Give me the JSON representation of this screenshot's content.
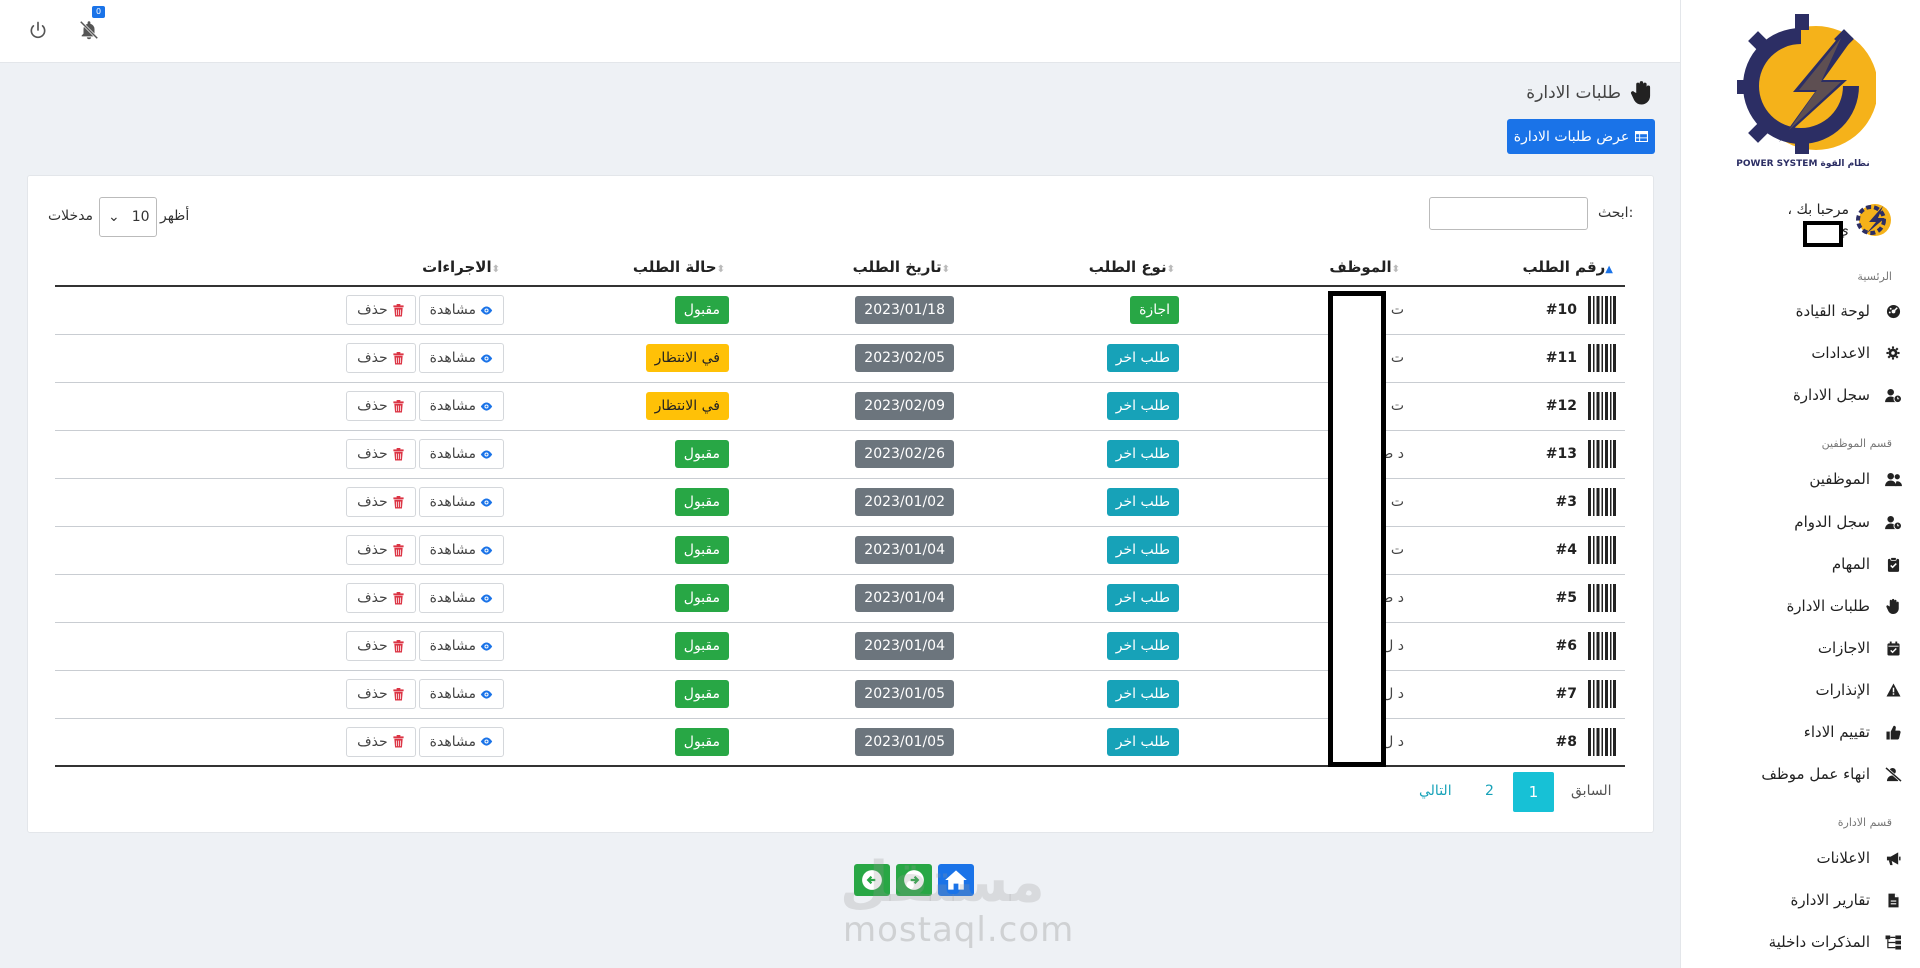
{
  "topbar": {
    "notification_count": "0"
  },
  "sidebar": {
    "logo_text": "نظام القوة POWER SYSTEM",
    "greeting": "مرحبا بك ،",
    "user_name": "ي",
    "sections": {
      "main": "الرئسية",
      "employees": "قسم الموظفين",
      "admin": "قسم الادارة"
    },
    "items": [
      {
        "label": "لوحة القيادة",
        "icon": "dashboard-icon"
      },
      {
        "label": "الاعدادات",
        "icon": "gear-icon"
      },
      {
        "label": "سجل الادارة",
        "icon": "user-clock-icon"
      },
      {
        "label": "الموظفين",
        "icon": "users-icon"
      },
      {
        "label": "سجل الدوام",
        "icon": "user-clock-icon"
      },
      {
        "label": "المهام",
        "icon": "clipboard-icon"
      },
      {
        "label": "طلبات الادارة",
        "icon": "hand-icon"
      },
      {
        "label": "الاجازات",
        "icon": "calendar-check-icon"
      },
      {
        "label": "الإنذارات",
        "icon": "warning-icon"
      },
      {
        "label": "تقييم الاداء",
        "icon": "thumbs-up-icon"
      },
      {
        "label": "انهاء عمل موظف",
        "icon": "user-slash-icon"
      },
      {
        "label": "الاعلانات",
        "icon": "megaphone-icon"
      },
      {
        "label": "تقارير الادارة",
        "icon": "file-icon"
      },
      {
        "label": "المذكرات داخلية",
        "icon": "sitemap-icon"
      }
    ]
  },
  "page": {
    "title": "طلبات الادارة",
    "view_button": "عرض طلبات الادارة"
  },
  "table_controls": {
    "search_label": "ابحث:",
    "show_label": "أظهر",
    "page_length": "10",
    "entries_label": "مدخلات"
  },
  "table": {
    "headers": [
      "رقم الطلب",
      "الموظف",
      "نوع الطلب",
      "تاريخ الطلب",
      "حالة الطلب",
      "الاجراءات"
    ],
    "view_label": "مشاهدة",
    "delete_label": "حذف",
    "rows": [
      {
        "no": "#10",
        "emp": "ت",
        "type": "اجازة",
        "type_color": "green",
        "date": "2023/01/18",
        "status": "مقبول",
        "status_color": "green"
      },
      {
        "no": "#11",
        "emp": "ت",
        "type": "طلب اخر",
        "type_color": "teal",
        "date": "2023/02/05",
        "status": "في الانتظار",
        "status_color": "yellow"
      },
      {
        "no": "#12",
        "emp": "ت",
        "type": "طلب اخر",
        "type_color": "teal",
        "date": "2023/02/09",
        "status": "في الانتظار",
        "status_color": "yellow"
      },
      {
        "no": "#13",
        "emp": "د   طاني",
        "type": "طلب اخر",
        "type_color": "teal",
        "date": "2023/02/26",
        "status": "مقبول",
        "status_color": "green"
      },
      {
        "no": "#3",
        "emp": "ت",
        "type": "طلب اخر",
        "type_color": "teal",
        "date": "2023/01/02",
        "status": "مقبول",
        "status_color": "green"
      },
      {
        "no": "#4",
        "emp": "ت",
        "type": "طلب اخر",
        "type_color": "teal",
        "date": "2023/01/04",
        "status": "مقبول",
        "status_color": "green"
      },
      {
        "no": "#5",
        "emp": "د   طاني",
        "type": "طلب اخر",
        "type_color": "teal",
        "date": "2023/01/04",
        "status": "مقبول",
        "status_color": "green"
      },
      {
        "no": "#6",
        "emp": "د      ل",
        "type": "طلب اخر",
        "type_color": "teal",
        "date": "2023/01/04",
        "status": "مقبول",
        "status_color": "green"
      },
      {
        "no": "#7",
        "emp": "د      ل",
        "type": "طلب اخر",
        "type_color": "teal",
        "date": "2023/01/05",
        "status": "مقبول",
        "status_color": "green"
      },
      {
        "no": "#8",
        "emp": "د      ل",
        "type": "طلب اخر",
        "type_color": "teal",
        "date": "2023/01/05",
        "status": "مقبول",
        "status_color": "green"
      }
    ]
  },
  "pagination": {
    "prev": "السابق",
    "pages": [
      "1",
      "2"
    ],
    "current": "1",
    "next": "التالي"
  },
  "watermark": {
    "arabic": "مستقل",
    "latin": "mostaql.com"
  },
  "colors": {
    "primary": "#1a73e8",
    "success": "#28a745",
    "info": "#17a2b8",
    "warning": "#ffc107",
    "secondary": "#6c757d",
    "logo_gear": "#2c2e64",
    "logo_accent": "#f5b21a"
  }
}
